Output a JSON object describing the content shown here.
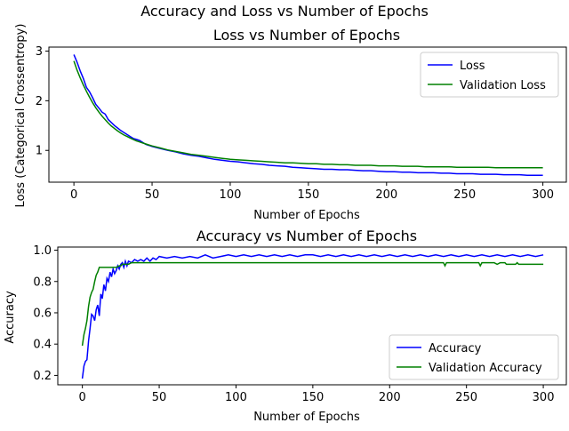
{
  "figure": {
    "title": "Accuracy and Loss vs Number of Epochs"
  },
  "colors": {
    "train": "#0000ff",
    "validation": "#008000"
  },
  "chart_data": [
    {
      "type": "line",
      "title": "Loss vs Number of Epochs",
      "xlabel": "Number of Epochs",
      "ylabel": "Loss (Categorical Crossentropy)",
      "xlim": [
        -16,
        315
      ],
      "ylim": [
        0.36,
        3.08
      ],
      "xticks": [
        0,
        50,
        100,
        150,
        200,
        250,
        300
      ],
      "yticks": [
        1,
        2,
        3
      ],
      "grid": false,
      "legend_position": "top-right",
      "series": [
        {
          "name": "Loss",
          "color": "#0000ff",
          "x": [
            0,
            2,
            4,
            6,
            8,
            10,
            12,
            14,
            16,
            18,
            20,
            22,
            24,
            26,
            28,
            30,
            32,
            34,
            36,
            38,
            40,
            42,
            44,
            46,
            48,
            50,
            55,
            60,
            65,
            70,
            75,
            80,
            85,
            90,
            95,
            100,
            105,
            110,
            115,
            120,
            125,
            130,
            135,
            140,
            145,
            150,
            155,
            160,
            165,
            170,
            175,
            180,
            185,
            190,
            195,
            200,
            205,
            210,
            215,
            220,
            225,
            230,
            235,
            240,
            245,
            250,
            255,
            260,
            265,
            270,
            275,
            280,
            285,
            290,
            295,
            300
          ],
          "y": [
            2.93,
            2.78,
            2.6,
            2.45,
            2.27,
            2.18,
            2.06,
            1.93,
            1.85,
            1.77,
            1.73,
            1.62,
            1.56,
            1.5,
            1.45,
            1.4,
            1.36,
            1.32,
            1.28,
            1.24,
            1.22,
            1.2,
            1.16,
            1.12,
            1.1,
            1.08,
            1.04,
            1.0,
            0.97,
            0.93,
            0.9,
            0.88,
            0.85,
            0.82,
            0.8,
            0.78,
            0.77,
            0.75,
            0.73,
            0.72,
            0.7,
            0.69,
            0.68,
            0.66,
            0.65,
            0.64,
            0.63,
            0.62,
            0.62,
            0.61,
            0.61,
            0.6,
            0.59,
            0.59,
            0.58,
            0.57,
            0.57,
            0.56,
            0.56,
            0.55,
            0.55,
            0.55,
            0.54,
            0.54,
            0.53,
            0.53,
            0.53,
            0.52,
            0.52,
            0.52,
            0.51,
            0.51,
            0.51,
            0.5,
            0.5,
            0.5
          ]
        },
        {
          "name": "Validation Loss",
          "color": "#008000",
          "x": [
            0,
            2,
            4,
            6,
            8,
            10,
            12,
            14,
            16,
            18,
            20,
            22,
            24,
            26,
            28,
            30,
            32,
            34,
            36,
            38,
            40,
            42,
            44,
            46,
            48,
            50,
            55,
            60,
            65,
            70,
            75,
            80,
            85,
            90,
            95,
            100,
            105,
            110,
            115,
            120,
            125,
            130,
            135,
            140,
            145,
            150,
            155,
            160,
            165,
            170,
            175,
            180,
            185,
            190,
            195,
            200,
            205,
            210,
            215,
            220,
            225,
            230,
            235,
            240,
            245,
            250,
            255,
            260,
            265,
            270,
            275,
            280,
            285,
            290,
            295,
            300
          ],
          "y": [
            2.8,
            2.62,
            2.46,
            2.32,
            2.19,
            2.07,
            1.96,
            1.86,
            1.77,
            1.69,
            1.62,
            1.55,
            1.49,
            1.44,
            1.39,
            1.35,
            1.31,
            1.28,
            1.25,
            1.22,
            1.19,
            1.17,
            1.15,
            1.13,
            1.11,
            1.09,
            1.05,
            1.01,
            0.98,
            0.95,
            0.92,
            0.9,
            0.88,
            0.86,
            0.84,
            0.82,
            0.81,
            0.8,
            0.79,
            0.78,
            0.77,
            0.76,
            0.75,
            0.75,
            0.74,
            0.73,
            0.73,
            0.72,
            0.72,
            0.71,
            0.71,
            0.7,
            0.7,
            0.7,
            0.69,
            0.69,
            0.69,
            0.68,
            0.68,
            0.68,
            0.67,
            0.67,
            0.67,
            0.67,
            0.66,
            0.66,
            0.66,
            0.66,
            0.66,
            0.65,
            0.65,
            0.65,
            0.65,
            0.65,
            0.65,
            0.65
          ]
        }
      ]
    },
    {
      "type": "line",
      "title": "Accuracy vs Number of Epochs",
      "xlabel": "Number of Epochs",
      "ylabel": "Accuracy",
      "xlim": [
        -16,
        315
      ],
      "ylim": [
        0.14,
        1.02
      ],
      "xticks": [
        0,
        50,
        100,
        150,
        200,
        250,
        300
      ],
      "yticks": [
        0.2,
        0.4,
        0.6,
        0.8,
        1.0
      ],
      "ytick_labels": [
        "0.2",
        "0.4",
        "0.6",
        "0.8",
        "1.0"
      ],
      "grid": false,
      "legend_position": "bottom-right",
      "series": [
        {
          "name": "Accuracy",
          "color": "#0000ff",
          "x": [
            0,
            1,
            2,
            3,
            4,
            5,
            6,
            7,
            8,
            9,
            10,
            11,
            12,
            13,
            14,
            15,
            16,
            17,
            18,
            19,
            20,
            21,
            22,
            23,
            24,
            25,
            26,
            27,
            28,
            29,
            30,
            32,
            34,
            36,
            38,
            40,
            42,
            44,
            46,
            48,
            50,
            55,
            60,
            65,
            70,
            75,
            80,
            85,
            90,
            95,
            100,
            105,
            110,
            115,
            120,
            125,
            130,
            135,
            140,
            145,
            150,
            155,
            160,
            165,
            170,
            175,
            180,
            185,
            190,
            195,
            200,
            205,
            210,
            215,
            220,
            225,
            230,
            235,
            240,
            245,
            250,
            255,
            260,
            265,
            270,
            275,
            280,
            285,
            290,
            295,
            300
          ],
          "y": [
            0.18,
            0.26,
            0.29,
            0.3,
            0.42,
            0.5,
            0.59,
            0.58,
            0.55,
            0.62,
            0.65,
            0.58,
            0.72,
            0.69,
            0.78,
            0.74,
            0.82,
            0.8,
            0.86,
            0.83,
            0.88,
            0.85,
            0.87,
            0.9,
            0.88,
            0.91,
            0.92,
            0.89,
            0.93,
            0.9,
            0.93,
            0.92,
            0.94,
            0.93,
            0.94,
            0.93,
            0.95,
            0.93,
            0.95,
            0.94,
            0.96,
            0.95,
            0.96,
            0.95,
            0.96,
            0.95,
            0.97,
            0.95,
            0.96,
            0.97,
            0.96,
            0.97,
            0.96,
            0.97,
            0.96,
            0.97,
            0.96,
            0.97,
            0.96,
            0.97,
            0.97,
            0.96,
            0.97,
            0.96,
            0.97,
            0.96,
            0.97,
            0.96,
            0.97,
            0.96,
            0.97,
            0.96,
            0.97,
            0.96,
            0.97,
            0.96,
            0.97,
            0.96,
            0.97,
            0.96,
            0.97,
            0.96,
            0.97,
            0.96,
            0.97,
            0.96,
            0.97,
            0.96,
            0.97,
            0.96,
            0.97
          ]
        },
        {
          "name": "Validation Accuracy",
          "color": "#008000",
          "x": [
            0,
            1,
            2,
            3,
            4,
            5,
            6,
            7,
            8,
            9,
            10,
            11,
            12,
            13,
            15,
            18,
            20,
            22,
            24,
            25,
            26,
            28,
            30,
            32,
            35,
            40,
            50,
            60,
            80,
            100,
            120,
            150,
            180,
            200,
            220,
            235,
            236,
            237,
            238,
            240,
            258,
            259,
            260,
            262,
            268,
            270,
            272,
            275,
            276,
            278,
            282,
            283,
            284,
            286,
            290,
            295,
            300
          ],
          "y": [
            0.39,
            0.46,
            0.5,
            0.55,
            0.64,
            0.7,
            0.73,
            0.75,
            0.8,
            0.84,
            0.86,
            0.89,
            0.89,
            0.89,
            0.89,
            0.89,
            0.89,
            0.89,
            0.9,
            0.9,
            0.91,
            0.91,
            0.91,
            0.92,
            0.92,
            0.92,
            0.92,
            0.92,
            0.92,
            0.92,
            0.92,
            0.92,
            0.92,
            0.92,
            0.92,
            0.92,
            0.9,
            0.92,
            0.92,
            0.92,
            0.92,
            0.9,
            0.92,
            0.92,
            0.92,
            0.91,
            0.92,
            0.92,
            0.91,
            0.91,
            0.91,
            0.92,
            0.91,
            0.91,
            0.91,
            0.91,
            0.91
          ]
        }
      ]
    }
  ]
}
